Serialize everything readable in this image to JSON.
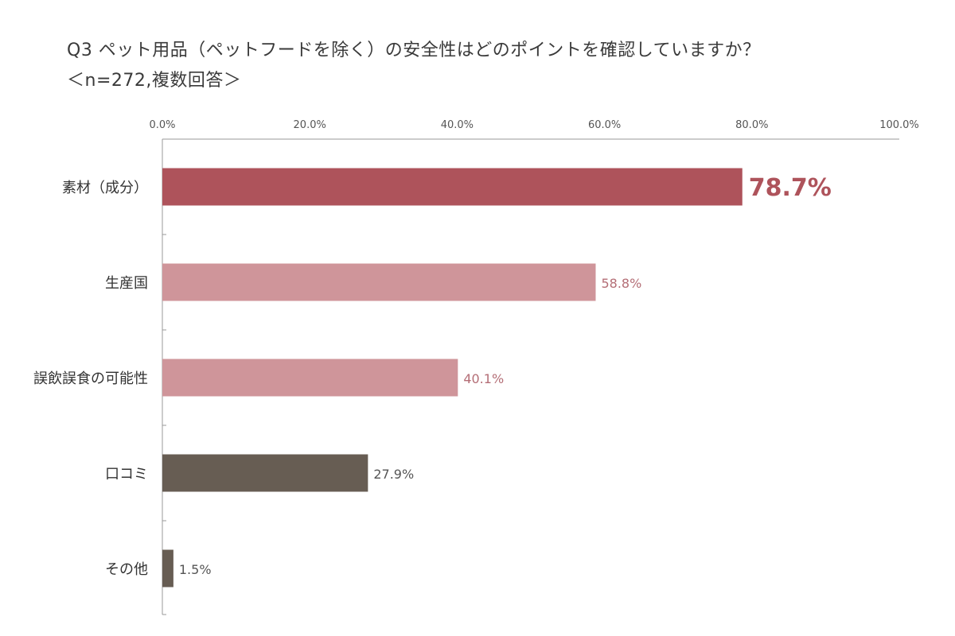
{
  "chart_data": {
    "type": "bar",
    "orientation": "horizontal",
    "title": "Q3 ペット用品（ペットフードを除く）の安全性はどのポイントを確認していますか？",
    "subtitle": "＜n=272,複数回答＞",
    "categories": [
      "素材（成分）",
      "生産国",
      "誤飲誤食の可能性",
      "口コミ",
      "その他"
    ],
    "values": [
      78.7,
      58.8,
      40.1,
      27.9,
      1.5
    ],
    "value_labels": [
      "78.7%",
      "58.8%",
      "40.1%",
      "27.9%",
      "1.5%"
    ],
    "xlim": [
      0,
      100
    ],
    "x_ticks": [
      0,
      20,
      40,
      60,
      80,
      100
    ],
    "x_tick_labels": [
      "0.0%",
      "20.0%",
      "40.0%",
      "60.0%",
      "80.0%",
      "100.0%"
    ],
    "x_axis_position": "top",
    "grid": false,
    "colors": {
      "bars": [
        "#ae535b",
        "#cf959a",
        "#cf959a",
        "#675d53",
        "#675d53"
      ],
      "labels": [
        "#ae535b",
        "#b46e76",
        "#b46e76",
        "#555555",
        "#555555"
      ],
      "axis": "#999999"
    },
    "xlabel": "",
    "ylabel": ""
  }
}
